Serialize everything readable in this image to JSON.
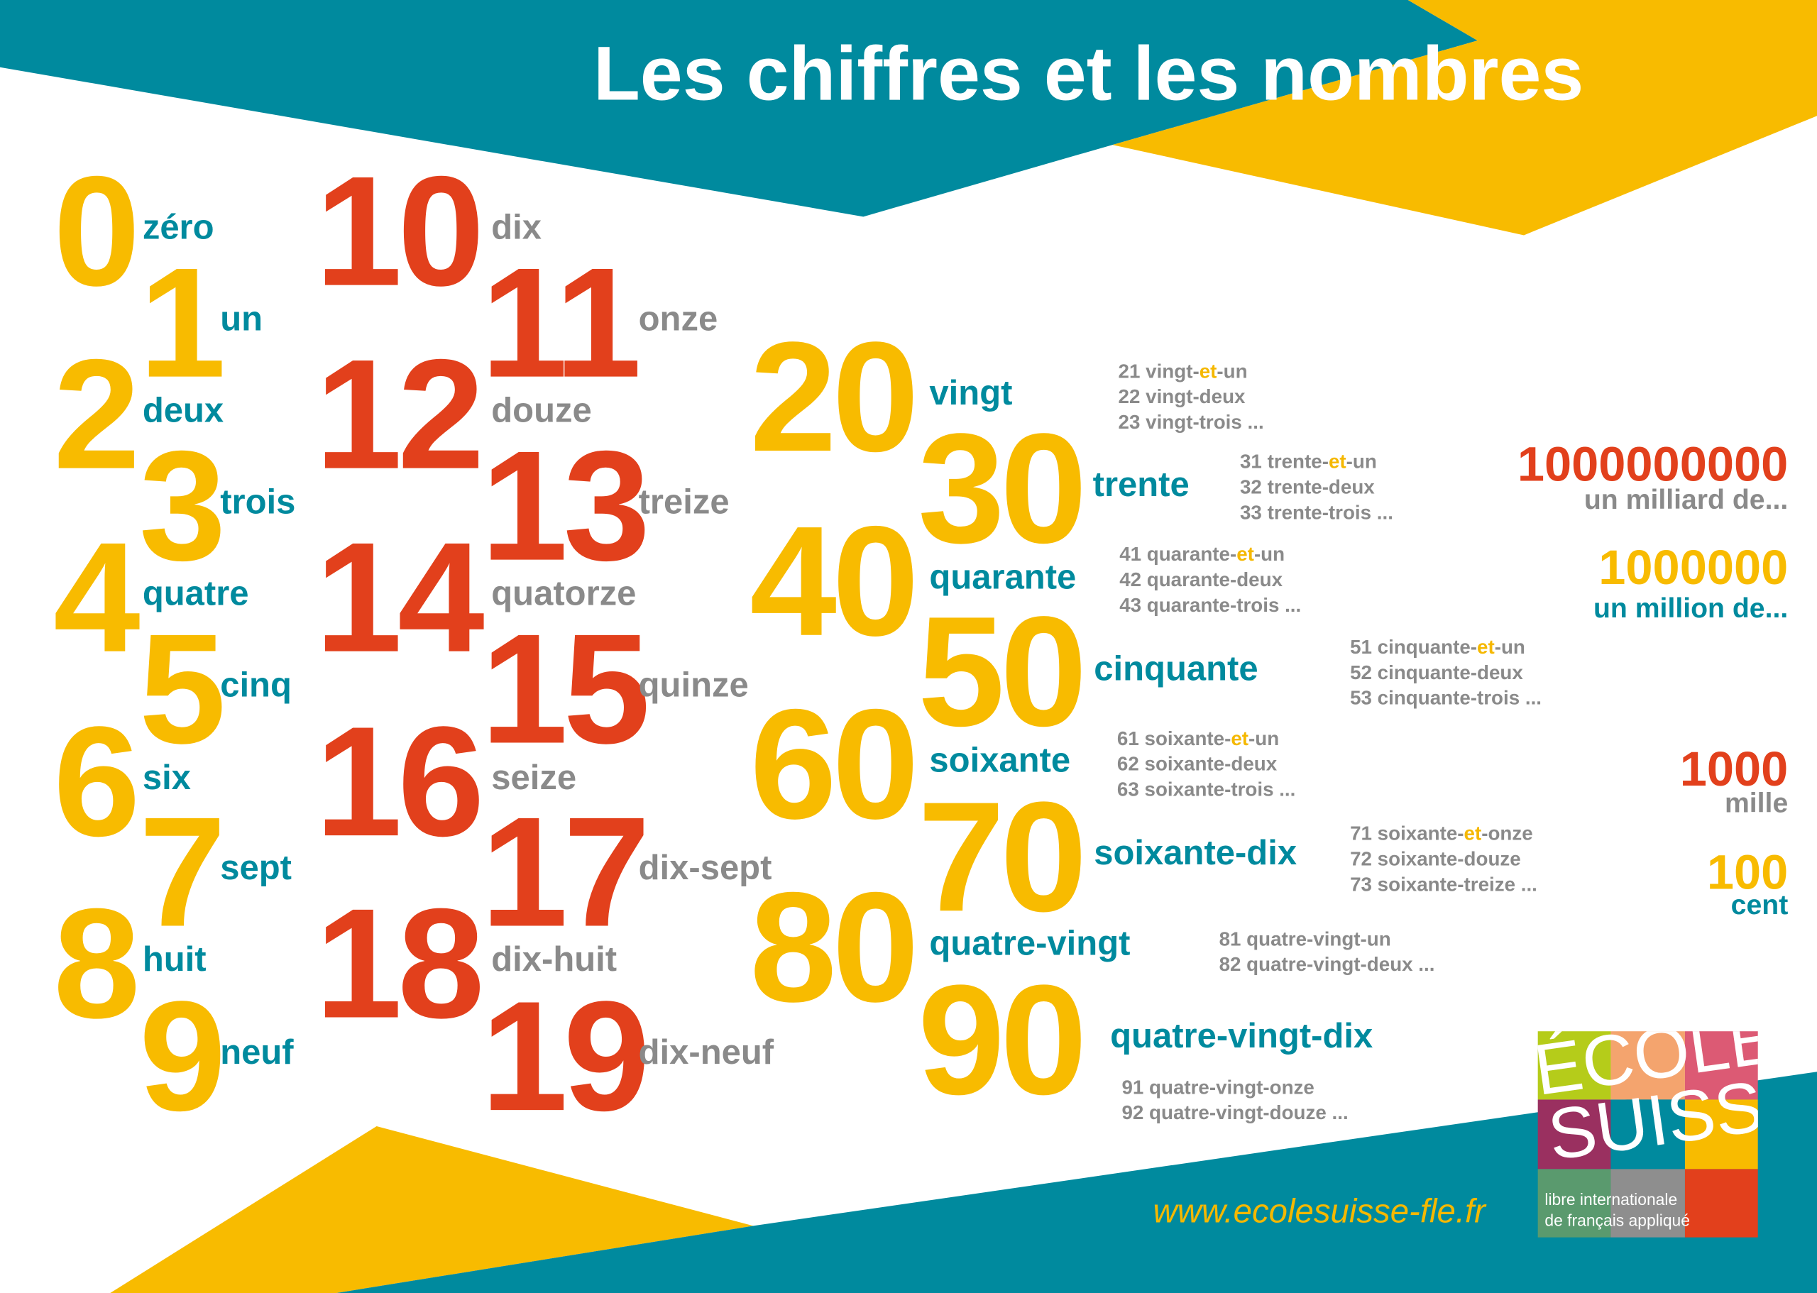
{
  "title": "Les chiffres et les nombres",
  "colors": {
    "teal": "#008a9e",
    "yellow": "#f8bb00",
    "red": "#e2401c",
    "gray": "#8a8a8a"
  },
  "units": [
    {
      "num": "0",
      "word": "zéro"
    },
    {
      "num": "1",
      "word": "un"
    },
    {
      "num": "2",
      "word": "deux"
    },
    {
      "num": "3",
      "word": "trois"
    },
    {
      "num": "4",
      "word": "quatre"
    },
    {
      "num": "5",
      "word": "cinq"
    },
    {
      "num": "6",
      "word": "six"
    },
    {
      "num": "7",
      "word": "sept"
    },
    {
      "num": "8",
      "word": "huit"
    },
    {
      "num": "9",
      "word": "neuf"
    }
  ],
  "teens": [
    {
      "num": "10",
      "word": "dix"
    },
    {
      "num": "11",
      "word": "onze"
    },
    {
      "num": "12",
      "word": "douze"
    },
    {
      "num": "13",
      "word": "treize"
    },
    {
      "num": "14",
      "word": "quatorze"
    },
    {
      "num": "15",
      "word": "quinze"
    },
    {
      "num": "16",
      "word": "seize"
    },
    {
      "num": "17",
      "word": "dix-sept"
    },
    {
      "num": "18",
      "word": "dix-huit"
    },
    {
      "num": "19",
      "word": "dix-neuf"
    }
  ],
  "tens": [
    {
      "num": "20",
      "word": "vingt",
      "examples": [
        "21 vingt-et-un",
        "22 vingt-deux",
        "23 vingt-trois ..."
      ]
    },
    {
      "num": "30",
      "word": "trente",
      "examples": [
        "31 trente-et-un",
        "32 trente-deux",
        "33 trente-trois ..."
      ]
    },
    {
      "num": "40",
      "word": "quarante",
      "examples": [
        "41 quarante-et-un",
        "42 quarante-deux",
        "43 quarante-trois ..."
      ]
    },
    {
      "num": "50",
      "word": "cinquante",
      "examples": [
        "51 cinquante-et-un",
        "52 cinquante-deux",
        "53 cinquante-trois ..."
      ]
    },
    {
      "num": "60",
      "word": "soixante",
      "examples": [
        "61 soixante-et-un",
        "62 soixante-deux",
        "63 soixante-trois ..."
      ]
    },
    {
      "num": "70",
      "word": "soixante-dix",
      "examples": [
        "71 soixante-et-onze",
        "72 soixante-douze",
        "73 soixante-treize ..."
      ]
    },
    {
      "num": "80",
      "word": "quatre-vingt",
      "examples": [
        "81 quatre-vingt-un",
        "82 quatre-vingt-deux ..."
      ]
    },
    {
      "num": "90",
      "word": "quatre-vingt-dix",
      "examples": [
        "91 quatre-vingt-onze",
        "92 quatre-vingt-douze ..."
      ]
    }
  ],
  "large": [
    {
      "num": "1000000000",
      "word": "un milliard de..."
    },
    {
      "num": "1000000",
      "word": "un million de..."
    },
    {
      "num": "1000",
      "word": "mille"
    },
    {
      "num": "100",
      "word": "cent"
    }
  ],
  "website": "www.ecolesuisse-fle.fr",
  "logo": {
    "line1": "ÉCOLE",
    "line2": "SUISSE",
    "tagline1": "libre internationale",
    "tagline2": "de français appliqué"
  }
}
